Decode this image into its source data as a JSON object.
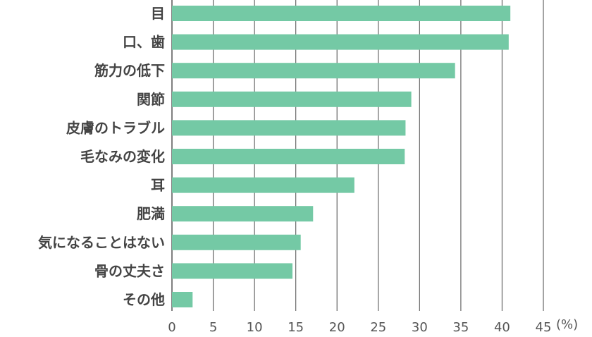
{
  "chart_data": {
    "type": "bar",
    "orientation": "horizontal",
    "categories": [
      "目",
      "口、歯",
      "筋力の低下",
      "関節",
      "皮膚のトラブル",
      "毛なみの変化",
      "耳",
      "肥満",
      "気になることはない",
      "骨の丈夫さ",
      "その他"
    ],
    "values": [
      41.0,
      40.8,
      34.3,
      29.0,
      28.3,
      28.2,
      22.1,
      17.1,
      15.6,
      14.6,
      2.5
    ],
    "xlim": [
      0,
      45
    ],
    "xticks": [
      "0",
      "5",
      "10",
      "15",
      "20",
      "25",
      "30",
      "35",
      "40",
      "45"
    ],
    "xunit": "(%)",
    "grid": true,
    "bar_color": "#74c9a5",
    "title": "",
    "xlabel": "",
    "ylabel": ""
  }
}
